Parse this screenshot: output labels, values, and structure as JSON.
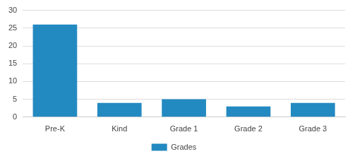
{
  "chart_data": {
    "type": "bar",
    "categories": [
      "Pre-K",
      "Kind",
      "Grade 1",
      "Grade 2",
      "Grade 3"
    ],
    "series": [
      {
        "name": "Grades",
        "color": "#2389c1",
        "values": [
          26,
          4,
          5,
          3,
          4
        ]
      }
    ],
    "ylim": [
      0,
      30
    ],
    "yticks": [
      0,
      5,
      10,
      15,
      20,
      25,
      30
    ],
    "grid": true,
    "legend": "bottom"
  }
}
